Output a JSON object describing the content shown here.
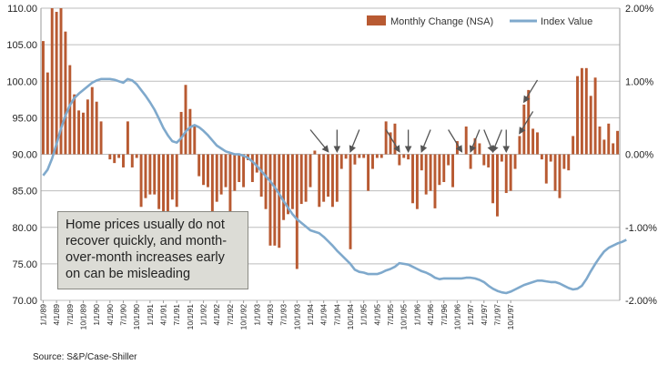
{
  "chart_data": {
    "type": "bar+line",
    "title": "",
    "legend": {
      "placement": "top-right",
      "entries": [
        {
          "name": "Monthly Change (NSA)",
          "color": "#b85a32",
          "kind": "bar"
        },
        {
          "name": "Index Value",
          "color": "#7fa9cc",
          "kind": "line"
        }
      ]
    },
    "left_axis": {
      "min": 70,
      "max": 110,
      "ticks": [
        "110.00",
        "105.00",
        "100.00",
        "95.00",
        "90.00",
        "85.00",
        "80.00",
        "75.00",
        "70.00"
      ]
    },
    "right_axis": {
      "min": -2.0,
      "max": 2.0,
      "ticks": [
        "2.00%",
        "1.00%",
        "0.00%",
        "-1.00%",
        "-2.00%"
      ]
    },
    "x_start": "1/1/89",
    "x_ticks": [
      "1/1/89",
      "4/1/89",
      "7/1/89",
      "10/1/89",
      "1/1/90",
      "4/1/90",
      "7/1/90",
      "10/1/90",
      "1/1/91",
      "4/1/91",
      "7/1/91",
      "10/1/91",
      "1/1/92",
      "4/1/92",
      "7/1/92",
      "10/1/92",
      "1/1/93",
      "4/1/93",
      "7/1/93",
      "10/1/93",
      "1/1/94",
      "4/1/94",
      "7/1/94",
      "10/1/94",
      "1/1/95",
      "4/1/95",
      "7/1/95",
      "10/1/95",
      "1/1/96",
      "4/1/96",
      "7/1/96",
      "10/1/96",
      "1/1/97",
      "4/1/97",
      "7/1/97",
      "10/1/97"
    ],
    "monthly_change_pct": [
      1.55,
      1.12,
      2.0,
      1.95,
      2.0,
      1.68,
      1.22,
      0.82,
      0.6,
      0.57,
      0.75,
      0.92,
      0.72,
      0.45,
      0.0,
      -0.07,
      -0.12,
      -0.05,
      -0.18,
      0.45,
      -0.18,
      -0.05,
      -0.72,
      -0.6,
      -0.55,
      -0.55,
      -0.75,
      -0.85,
      -0.8,
      -0.62,
      -0.72,
      0.58,
      0.95,
      0.62,
      0.38,
      -0.3,
      -0.42,
      -0.45,
      -0.8,
      -0.65,
      -0.55,
      -0.45,
      -0.8,
      -0.5,
      -0.38,
      -0.45,
      -0.08,
      -0.38,
      -0.25,
      -0.58,
      -0.75,
      -1.25,
      -1.25,
      -1.28,
      -0.9,
      -0.82,
      -0.75,
      -1.57,
      -0.68,
      -0.65,
      -0.45,
      0.05,
      -0.72,
      -0.65,
      -0.58,
      -0.72,
      -0.65,
      -0.2,
      -0.06,
      -1.3,
      -0.14,
      -0.05,
      -0.05,
      -0.5,
      -0.2,
      -0.05,
      -0.05,
      0.45,
      0.3,
      0.42,
      -0.15,
      -0.05,
      -0.07,
      -0.67,
      -0.75,
      -0.22,
      -0.55,
      -0.5,
      -0.74,
      -0.42,
      -0.38,
      -0.15,
      -0.45,
      0.18,
      0.0,
      0.38,
      -0.2,
      0.22,
      0.15,
      -0.15,
      -0.18,
      -0.67,
      -0.85,
      -0.1,
      -0.53,
      -0.5,
      -0.2,
      0.25,
      0.68,
      0.88,
      0.35,
      0.3,
      -0.07,
      -0.4,
      -0.1,
      -0.5,
      -0.6,
      -0.2,
      -0.22,
      0.25,
      1.07,
      1.18,
      1.18,
      0.8,
      1.05,
      0.38,
      0.2,
      0.42,
      0.15,
      0.32
    ],
    "index_value": [
      87.1,
      87.9,
      89.4,
      91.4,
      93.5,
      95.3,
      96.7,
      97.7,
      98.3,
      98.8,
      99.3,
      99.8,
      100.1,
      100.3,
      100.3,
      100.3,
      100.2,
      100.0,
      99.8,
      100.3,
      100.1,
      99.6,
      98.8,
      98.0,
      97.1,
      96.1,
      94.9,
      93.6,
      92.6,
      91.8,
      91.6,
      92.2,
      93.1,
      93.7,
      94.0,
      93.7,
      93.2,
      92.6,
      91.9,
      91.2,
      90.8,
      90.4,
      90.2,
      90.0,
      90.0,
      89.8,
      89.5,
      89.0,
      88.4,
      87.7,
      87.0,
      86.3,
      85.5,
      84.6,
      83.6,
      82.7,
      81.8,
      81.1,
      80.6,
      80.1,
      79.6,
      79.4,
      79.2,
      78.7,
      78.1,
      77.5,
      76.8,
      76.2,
      75.6,
      75.0,
      74.2,
      73.9,
      73.8,
      73.6,
      73.6,
      73.6,
      73.8,
      74.1,
      74.3,
      74.6,
      75.1,
      75.0,
      74.9,
      74.6,
      74.3,
      74.0,
      73.8,
      73.5,
      73.1,
      72.9,
      73.0,
      73.0,
      73.0,
      73.0,
      73.0,
      73.1,
      73.1,
      73.0,
      72.8,
      72.5,
      72.0,
      71.6,
      71.3,
      71.1,
      71.0,
      71.2,
      71.5,
      71.8,
      72.1,
      72.3,
      72.5,
      72.7,
      72.7,
      72.6,
      72.5,
      72.5,
      72.3,
      72.0,
      71.7,
      71.5,
      71.6,
      72.0,
      72.9,
      74.0,
      75.0,
      75.9,
      76.7,
      77.2,
      77.5,
      77.8,
      78.0,
      78.3
    ]
  },
  "callout": {
    "text": "Home prices usually do not recover quickly, and month-over-month increases early on can be misleading"
  },
  "source": "Source: S&P/Case-Shiller",
  "arrows": [
    {
      "from_month": 60,
      "to_month": 64
    },
    {
      "from_month": 66,
      "to_month": 66
    },
    {
      "from_month": 71,
      "to_month": 69
    },
    {
      "from_month": 77,
      "to_month": 80
    },
    {
      "from_month": 82,
      "to_month": 82
    },
    {
      "from_month": 87,
      "to_month": 85
    },
    {
      "from_month": 91,
      "to_month": 94
    },
    {
      "from_month": 99,
      "to_month": 101
    },
    {
      "from_month": 104,
      "to_month": 104
    },
    {
      "from_month": 110,
      "to_month": 107
    },
    {
      "from_month": 111,
      "to_month": 108
    },
    {
      "from_month": 98,
      "to_month": 96
    },
    {
      "from_month": 103,
      "to_month": 101
    }
  ]
}
